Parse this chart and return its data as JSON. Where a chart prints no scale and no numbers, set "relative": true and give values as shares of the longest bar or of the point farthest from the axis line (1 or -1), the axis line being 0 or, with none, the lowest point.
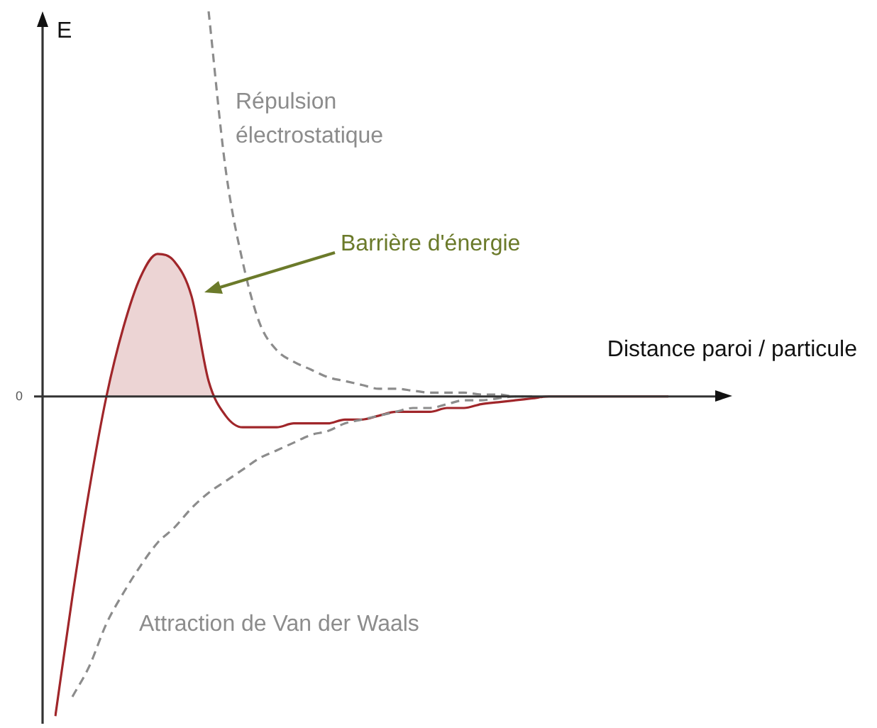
{
  "chart_data": {
    "type": "line",
    "relative": true,
    "ylabel": "E",
    "xlabel": "Distance paroi / particule",
    "categories": [
      null,
      null,
      null,
      null,
      null,
      null,
      null,
      null,
      null,
      null,
      null,
      null,
      null,
      null,
      null,
      null,
      null,
      null,
      null,
      null,
      null,
      null,
      null,
      null,
      null,
      null,
      null,
      null,
      null,
      null,
      null,
      null,
      null,
      null,
      null,
      null,
      null,
      null,
      null,
      null,
      null
    ],
    "series": [
      {
        "name": "Répulsion électrostatique",
        "color": "#8c8c8c",
        "line_style": "dashed",
        "values": [
          null,
          null,
          null,
          null,
          null,
          null,
          null,
          null,
          null,
          1,
          0.59,
          0.35,
          0.19,
          0.12,
          0.09,
          0.07,
          0.05,
          0.04,
          0.03,
          0.02,
          0.02,
          0.015,
          0.01,
          0.01,
          0.01,
          0.005,
          0.005,
          0,
          0,
          null,
          null,
          null,
          null,
          null,
          null,
          null,
          null,
          null,
          null,
          null,
          null
        ]
      },
      {
        "name": "Attraction de Van der Waals",
        "color": "#8c8c8c",
        "line_style": "dashed",
        "values": [
          null,
          -0.78,
          -0.7,
          -0.59,
          -0.51,
          -0.44,
          -0.38,
          -0.34,
          -0.29,
          -0.25,
          -0.22,
          -0.19,
          -0.16,
          -0.14,
          -0.12,
          -0.1,
          -0.09,
          -0.07,
          -0.06,
          -0.05,
          -0.04,
          -0.03,
          -0.03,
          -0.02,
          -0.01,
          -0.01,
          -0.005,
          0,
          0,
          null,
          null,
          null,
          null,
          null,
          null,
          null,
          null,
          null,
          null,
          null,
          null
        ]
      },
      {
        "type": "area",
        "color": "#a0262a",
        "line_style": "solid",
        "values": [
          -0.83,
          -0.52,
          -0.24,
          0,
          0.18,
          0.31,
          0.37,
          0.35,
          0.26,
          0.04,
          -0.05,
          -0.08,
          -0.08,
          -0.08,
          -0.07,
          -0.07,
          -0.07,
          -0.06,
          -0.06,
          -0.05,
          -0.04,
          -0.04,
          -0.04,
          -0.03,
          -0.03,
          -0.02,
          -0.015,
          -0.01,
          -0.005,
          0,
          0,
          0,
          0,
          0,
          0,
          0,
          0,
          null,
          null,
          null,
          null
        ]
      }
    ],
    "annotations": [
      "0",
      "Barrière d'énergie"
    ],
    "marker": "none",
    "legend": false
  }
}
